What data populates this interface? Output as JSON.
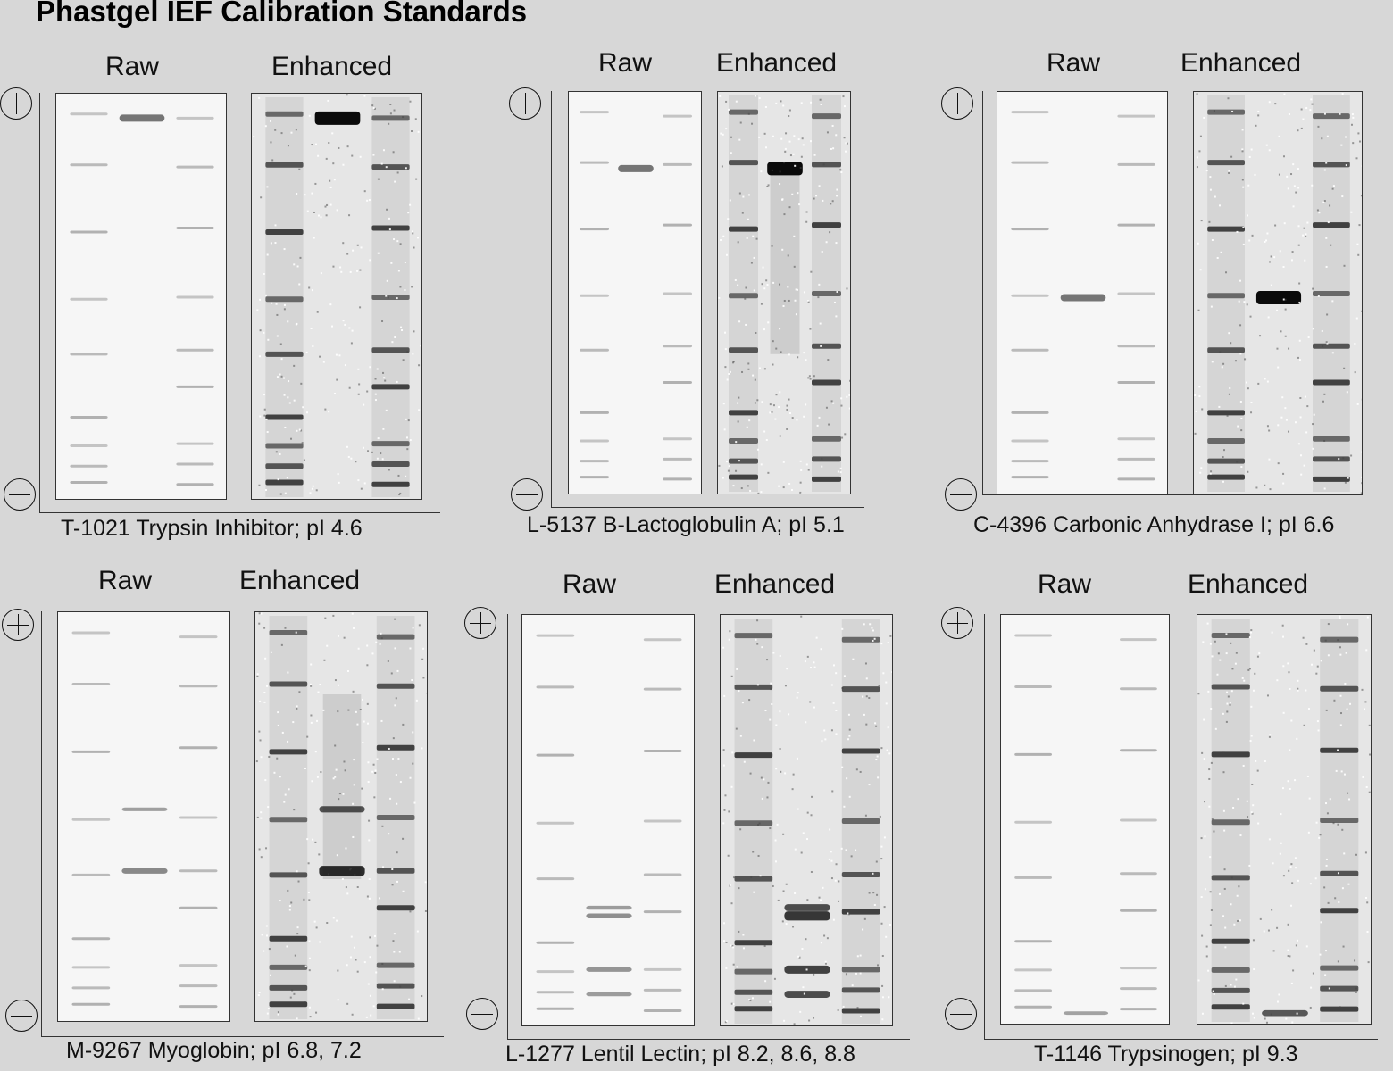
{
  "title": "Phastgel IEF Calibration Standards",
  "labels": {
    "raw": "Raw",
    "enhanced": "Enhanced"
  },
  "panels": [
    {
      "id": "trypsin-inhibitor",
      "caption": "T-1021 Trypsin Inhibitor; pI 4.6"
    },
    {
      "id": "b-lactoglobulin",
      "caption": "L-5137 B-Lactoglobulin A; pI 5.1"
    },
    {
      "id": "carbonic-anhydrase",
      "caption": "C-4396 Carbonic Anhydrase I; pI 6.6"
    },
    {
      "id": "myoglobin",
      "caption": "M-9267 Myoglobin; pI 6.8, 7.2"
    },
    {
      "id": "lentil-lectin",
      "caption": "L-1277 Lentil Lectin; pI 8.2, 8.6, 8.8"
    },
    {
      "id": "trypsinogen",
      "caption": "T-1146 Trypsinogen; pI 9.3"
    }
  ]
}
